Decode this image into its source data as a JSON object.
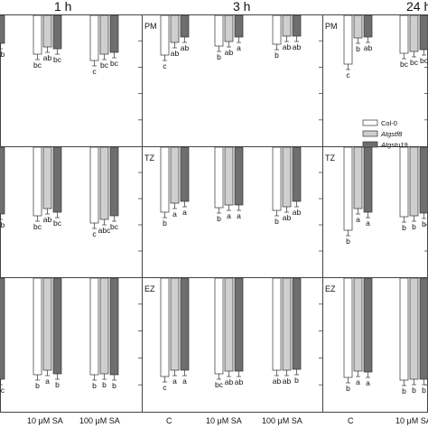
{
  "columns": [
    {
      "label": "1 h"
    },
    {
      "label": "3 h"
    },
    {
      "label": "24 h"
    }
  ],
  "legend": {
    "entries": [
      {
        "name": "Col-0",
        "fill": "#ffffff"
      },
      {
        "name": "Atgstf8",
        "fill": "#cfcfcf"
      },
      {
        "name": "Atgstu19",
        "fill": "#6e6e6e"
      }
    ]
  },
  "colors": {
    "col0": "#ffffff",
    "atgstf8": "#cfcfcf",
    "atgstu19": "#6e6e6e",
    "stroke": "#333333"
  },
  "x_labels": {
    "c1": [
      "10 μM SA",
      "100 μM SA"
    ],
    "c2": [
      "C",
      "10 μM SA",
      "100 μM SA"
    ],
    "c3": [
      "C",
      "10 μM SA"
    ]
  },
  "chart_data": {
    "type": "bar",
    "note_layout": "3x3 grid of bar-chart panels; rows = root zones, columns = time points. Values read as bar depth from the top axis (relative units).",
    "series": [
      "Col-0",
      "Atgstf8",
      "Atgstu19"
    ],
    "panels": [
      {
        "row": 0,
        "col": 0,
        "zone": "",
        "groups": [
          {
            "category": "",
            "bars": [
              {
                "series": "Atgstu19",
                "value": 0.26,
                "label": "ab"
              }
            ]
          },
          {
            "category": "10 μM SA",
            "bars": [
              {
                "series": "Col-0",
                "value": 0.36,
                "label": "bc"
              },
              {
                "series": "Atgstf8",
                "value": 0.29,
                "label": "ab"
              },
              {
                "series": "Atgstu19",
                "value": 0.31,
                "label": "bc"
              }
            ]
          },
          {
            "category": "100 μM SA",
            "bars": [
              {
                "series": "Col-0",
                "value": 0.42,
                "label": "c"
              },
              {
                "series": "Atgstf8",
                "value": 0.36,
                "label": "bc"
              },
              {
                "series": "Atgstu19",
                "value": 0.34,
                "label": "bc"
              }
            ]
          }
        ]
      },
      {
        "row": 0,
        "col": 1,
        "zone": "PM",
        "groups": [
          {
            "category": "C",
            "bars": [
              {
                "series": "Col-0",
                "value": 0.37,
                "label": "c"
              },
              {
                "series": "Atgstf8",
                "value": 0.25,
                "label": "ab"
              },
              {
                "series": "Atgstu19",
                "value": 0.2,
                "label": "ab"
              }
            ]
          },
          {
            "category": "10 μM SA",
            "bars": [
              {
                "series": "Col-0",
                "value": 0.28,
                "label": "b"
              },
              {
                "series": "Atgstf8",
                "value": 0.24,
                "label": "ab"
              },
              {
                "series": "Atgstu19",
                "value": 0.2,
                "label": "a"
              }
            ]
          },
          {
            "category": "100 μM SA",
            "bars": [
              {
                "series": "Col-0",
                "value": 0.27,
                "label": "b"
              },
              {
                "series": "Atgstf8",
                "value": 0.19,
                "label": "ab"
              },
              {
                "series": "Atgstu19",
                "value": 0.19,
                "label": "ab"
              }
            ]
          }
        ]
      },
      {
        "row": 0,
        "col": 2,
        "zone": "PM",
        "groups": [
          {
            "category": "C",
            "bars": [
              {
                "series": "Col-0",
                "value": 0.45,
                "label": "c"
              },
              {
                "series": "Atgstf8",
                "value": 0.21,
                "label": "b"
              },
              {
                "series": "Atgstu19",
                "value": 0.2,
                "label": "ab"
              }
            ]
          },
          {
            "category": "10 μM SA",
            "bars": [
              {
                "series": "Col-0",
                "value": 0.35,
                "label": "bc"
              },
              {
                "series": "Atgstf8",
                "value": 0.33,
                "label": "bc"
              },
              {
                "series": "Atgstu19",
                "value": 0.32,
                "label": "bc"
              }
            ]
          }
        ]
      },
      {
        "row": 1,
        "col": 0,
        "zone": "",
        "groups": [
          {
            "category": "",
            "bars": [
              {
                "series": "Atgstu19",
                "value": 0.62,
                "label": "ab"
              }
            ]
          },
          {
            "category": "10 μM SA",
            "bars": [
              {
                "series": "Col-0",
                "value": 0.63,
                "label": "bc"
              },
              {
                "series": "Atgstf8",
                "value": 0.57,
                "label": "ab"
              },
              {
                "series": "Atgstu19",
                "value": 0.6,
                "label": "bc"
              }
            ]
          },
          {
            "category": "100 μM SA",
            "bars": [
              {
                "series": "Col-0",
                "value": 0.7,
                "label": "c"
              },
              {
                "series": "Atgstf8",
                "value": 0.67,
                "label": "abc"
              },
              {
                "series": "Atgstu19",
                "value": 0.63,
                "label": "bc"
              }
            ]
          }
        ]
      },
      {
        "row": 1,
        "col": 1,
        "zone": "TZ",
        "groups": [
          {
            "category": "C",
            "bars": [
              {
                "series": "Col-0",
                "value": 0.6,
                "label": "b"
              },
              {
                "series": "Atgstf8",
                "value": 0.52,
                "label": "a"
              },
              {
                "series": "Atgstu19",
                "value": 0.5,
                "label": "a"
              }
            ]
          },
          {
            "category": "10 μM SA",
            "bars": [
              {
                "series": "Col-0",
                "value": 0.56,
                "label": "b"
              },
              {
                "series": "Atgstf8",
                "value": 0.53,
                "label": "a"
              },
              {
                "series": "Atgstu19",
                "value": 0.53,
                "label": "a"
              }
            ]
          },
          {
            "category": "100 μM SA",
            "bars": [
              {
                "series": "Col-0",
                "value": 0.58,
                "label": "b"
              },
              {
                "series": "Atgstf8",
                "value": 0.55,
                "label": "ab"
              },
              {
                "series": "Atgstu19",
                "value": 0.5,
                "label": "ab"
              }
            ]
          }
        ]
      },
      {
        "row": 1,
        "col": 2,
        "zone": "TZ",
        "groups": [
          {
            "category": "C",
            "bars": [
              {
                "series": "Col-0",
                "value": 0.77,
                "label": "b"
              },
              {
                "series": "Atgstf8",
                "value": 0.57,
                "label": "a"
              },
              {
                "series": "Atgstu19",
                "value": 0.6,
                "label": "a"
              }
            ]
          },
          {
            "category": "10 μM SA",
            "bars": [
              {
                "series": "Col-0",
                "value": 0.64,
                "label": "b"
              },
              {
                "series": "Atgstf8",
                "value": 0.63,
                "label": "b"
              },
              {
                "series": "Atgstu19",
                "value": 0.61,
                "label": "b"
              }
            ]
          }
        ]
      },
      {
        "row": 2,
        "col": 0,
        "zone": "",
        "groups": [
          {
            "category": "",
            "bars": [
              {
                "series": "Atgstu19",
                "value": 0.93,
                "label": "bc"
              }
            ]
          },
          {
            "category": "10 μM SA",
            "bars": [
              {
                "series": "Col-0",
                "value": 0.89,
                "label": "b"
              },
              {
                "series": "Atgstf8",
                "value": 0.85,
                "label": "a"
              },
              {
                "series": "Atgstu19",
                "value": 0.88,
                "label": "b"
              }
            ]
          },
          {
            "category": "100 μM SA",
            "bars": [
              {
                "series": "Col-0",
                "value": 0.89,
                "label": "b"
              },
              {
                "series": "Atgstf8",
                "value": 0.88,
                "label": "b"
              },
              {
                "series": "Atgstu19",
                "value": 0.89,
                "label": "b"
              }
            ]
          }
        ]
      },
      {
        "row": 2,
        "col": 1,
        "zone": "EZ",
        "groups": [
          {
            "category": "C",
            "bars": [
              {
                "series": "Col-0",
                "value": 0.91,
                "label": "c"
              },
              {
                "series": "Atgstf8",
                "value": 0.85,
                "label": "a"
              },
              {
                "series": "Atgstu19",
                "value": 0.85,
                "label": "a"
              }
            ]
          },
          {
            "category": "10 μM SA",
            "bars": [
              {
                "series": "Col-0",
                "value": 0.88,
                "label": "bc"
              },
              {
                "series": "Atgstf8",
                "value": 0.86,
                "label": "ab"
              },
              {
                "series": "Atgstu19",
                "value": 0.86,
                "label": "ab"
              }
            ]
          },
          {
            "category": "100 μM SA",
            "bars": [
              {
                "series": "Col-0",
                "value": 0.85,
                "label": "ab"
              },
              {
                "series": "Atgstf8",
                "value": 0.85,
                "label": "ab"
              },
              {
                "series": "Atgstu19",
                "value": 0.84,
                "label": "b"
              }
            ]
          }
        ]
      },
      {
        "row": 2,
        "col": 2,
        "zone": "EZ",
        "groups": [
          {
            "category": "C",
            "bars": [
              {
                "series": "Col-0",
                "value": 0.92,
                "label": "b"
              },
              {
                "series": "Atgstf8",
                "value": 0.86,
                "label": "a"
              },
              {
                "series": "Atgstu19",
                "value": 0.87,
                "label": "a"
              }
            ]
          },
          {
            "category": "10 μM SA",
            "bars": [
              {
                "series": "Col-0",
                "value": 0.94,
                "label": "b"
              },
              {
                "series": "Atgstf8",
                "value": 0.93,
                "label": "b"
              },
              {
                "series": "Atgstu19",
                "value": 0.93,
                "label": "b"
              }
            ]
          }
        ]
      }
    ]
  }
}
